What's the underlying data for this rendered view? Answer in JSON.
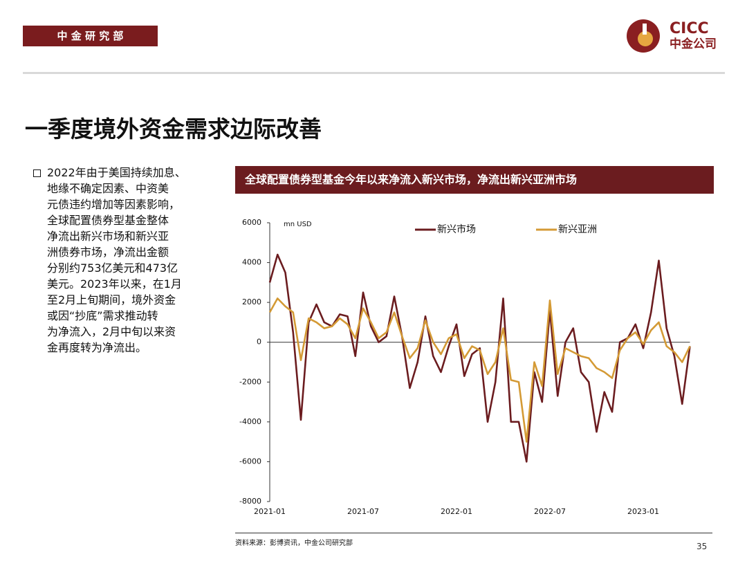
{
  "header": {
    "department": "中 金 研 究 部",
    "logo_en": "CICC",
    "logo_cn": "中金公司"
  },
  "title": "一季度境外资金需求边际改善",
  "bullet": {
    "lines": [
      "2022年由于美国持续加息、",
      "地缘不确定因素、中资美",
      "元债违约增加等因素影响，",
      "全球配置债券型基金整体",
      "净流出新兴市场和新兴亚",
      "洲债券市场，净流出金额",
      "分别约753亿美元和473亿",
      "美元。2023年以来，在1月",
      "至2月上旬期间，境外资金",
      "或因“抄底”需求推动转",
      "为净流入，2月中旬以来资",
      "金再度转为净流出。"
    ]
  },
  "chart_data": {
    "type": "line",
    "title": "全球配置债券型基金今年以来净流入新兴市场，净流出新兴亚洲市场",
    "y_unit": "mn USD",
    "categories": [
      "2021-01",
      null,
      null,
      null,
      null,
      null,
      null,
      null,
      null,
      null,
      null,
      null,
      "2021-07",
      null,
      null,
      null,
      null,
      null,
      null,
      null,
      null,
      null,
      null,
      null,
      "2022-01",
      null,
      null,
      null,
      null,
      null,
      null,
      null,
      null,
      null,
      null,
      null,
      "2022-07",
      null,
      null,
      null,
      null,
      null,
      null,
      null,
      null,
      null,
      null,
      null,
      "2023-01",
      null,
      null,
      null,
      null,
      null,
      null
    ],
    "series": [
      {
        "name": "新兴市场",
        "color": "#6b1c1f",
        "values": [
          3000,
          4400,
          3500,
          500,
          -3900,
          1000,
          1900,
          1000,
          800,
          1400,
          1300,
          -700,
          2500,
          800,
          0,
          300,
          2300,
          300,
          -2300,
          -1000,
          1300,
          -700,
          -1500,
          -200,
          900,
          -1700,
          -600,
          -300,
          -4000,
          -2000,
          2200,
          -4000,
          -4000,
          -6000,
          -1500,
          -3000,
          1600,
          -2700,
          0,
          700,
          -1500,
          -2000,
          -4500,
          -2500,
          -3500,
          0,
          200,
          900,
          -300,
          1500,
          4100,
          700,
          -700,
          -3100,
          -200
        ]
      },
      {
        "name": "新兴亚洲",
        "color": "#d49a35",
        "values": [
          1500,
          2200,
          1800,
          1500,
          -900,
          1200,
          1000,
          700,
          800,
          1200,
          900,
          200,
          1700,
          1000,
          200,
          500,
          1500,
          300,
          -800,
          -300,
          1100,
          0,
          -600,
          200,
          400,
          -800,
          -200,
          -400,
          -1600,
          -1000,
          700,
          -1900,
          -2000,
          -5000,
          -1000,
          -2200,
          2100,
          -1600,
          -300,
          -500,
          -700,
          -800,
          -1300,
          -1500,
          -1800,
          -400,
          200,
          500,
          -100,
          600,
          1000,
          -200,
          -500,
          -1000,
          -200
        ]
      }
    ],
    "ylim": [
      -8000,
      6000
    ],
    "yticks": [
      -8000,
      -6000,
      -4000,
      -2000,
      0,
      2000,
      4000,
      6000
    ],
    "grid": false,
    "legend": "top"
  },
  "source": "资料来源：彭博资讯，中金公司研究部",
  "page_number": "35"
}
